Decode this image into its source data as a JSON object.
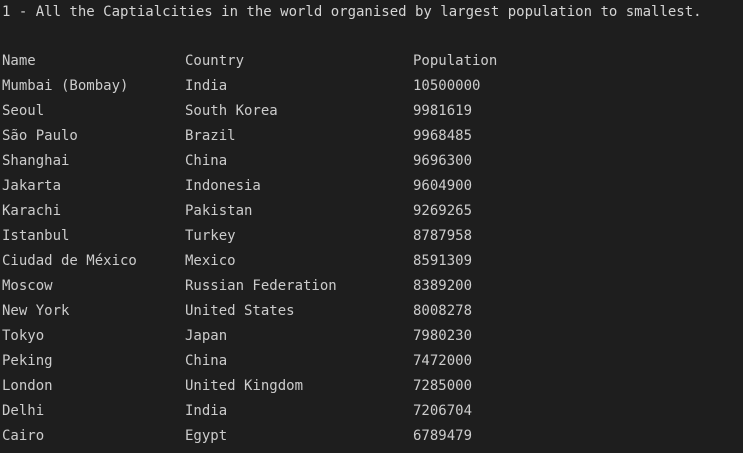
{
  "heading": "1 - All the Captialcities in the world organised by largest population to smallest.",
  "columns": {
    "name": "Name",
    "country": "Country",
    "population": "Population"
  },
  "rows": [
    {
      "name": "Mumbai (Bombay)",
      "country": "India",
      "population": "10500000"
    },
    {
      "name": "Seoul",
      "country": "South Korea",
      "population": "9981619"
    },
    {
      "name": "São Paulo",
      "country": "Brazil",
      "population": "9968485"
    },
    {
      "name": "Shanghai",
      "country": "China",
      "population": "9696300"
    },
    {
      "name": "Jakarta",
      "country": "Indonesia",
      "population": "9604900"
    },
    {
      "name": "Karachi",
      "country": "Pakistan",
      "population": "9269265"
    },
    {
      "name": "Istanbul",
      "country": "Turkey",
      "population": "8787958"
    },
    {
      "name": "Ciudad de México",
      "country": "Mexico",
      "population": "8591309"
    },
    {
      "name": "Moscow",
      "country": "Russian Federation",
      "population": "8389200"
    },
    {
      "name": "New York",
      "country": "United States",
      "population": "8008278"
    },
    {
      "name": "Tokyo",
      "country": "Japan",
      "population": "7980230"
    },
    {
      "name": "Peking",
      "country": "China",
      "population": "7472000"
    },
    {
      "name": "London",
      "country": "United Kingdom",
      "population": "7285000"
    },
    {
      "name": "Delhi",
      "country": "India",
      "population": "7206704"
    },
    {
      "name": "Cairo",
      "country": "Egypt",
      "population": "6789479"
    }
  ]
}
